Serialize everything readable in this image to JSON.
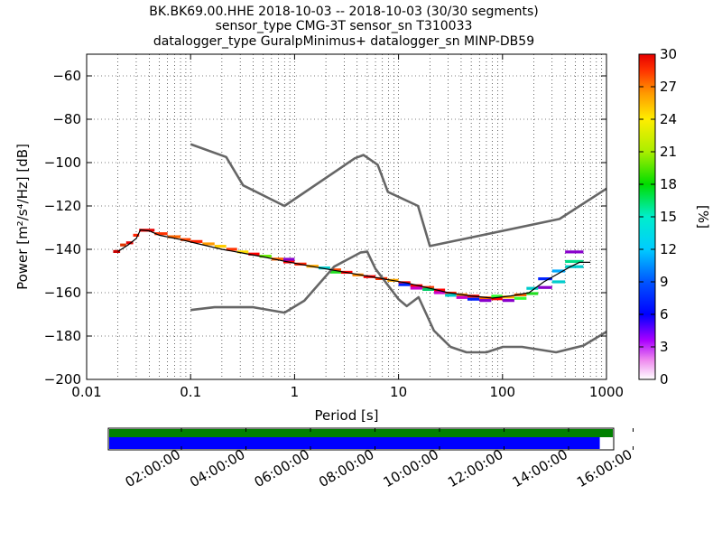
{
  "chart_data": {
    "type": "heatmap",
    "title_lines": [
      "BK.BK69.00.HHE   2018-10-03 -- 2018-10-03  (30/30 segments)",
      "sensor_type CMG-3T sensor_sn T310033",
      "datalogger_type GuralpMinimus+ datalogger_sn MINP-DB59"
    ],
    "xlabel": "Period [s]",
    "ylabel": "Power [m²/s⁴/Hz] [dB]",
    "x_scale": "log",
    "xlim": [
      0.01,
      1000
    ],
    "ylim": [
      -200,
      -50
    ],
    "x_ticks": [
      {
        "v": 0.01,
        "label": "0.01"
      },
      {
        "v": 0.1,
        "label": "0.1"
      },
      {
        "v": 1,
        "label": "1"
      },
      {
        "v": 10,
        "label": "10"
      },
      {
        "v": 100,
        "label": "100"
      },
      {
        "v": 1000,
        "label": "1000"
      }
    ],
    "y_ticks": [
      {
        "v": -60,
        "label": "−60"
      },
      {
        "v": -80,
        "label": "−80"
      },
      {
        "v": -100,
        "label": "−100"
      },
      {
        "v": -120,
        "label": "−120"
      },
      {
        "v": -140,
        "label": "−140"
      },
      {
        "v": -160,
        "label": "−160"
      },
      {
        "v": -180,
        "label": "−180"
      },
      {
        "v": -200,
        "label": "−200"
      }
    ],
    "grid": true,
    "colorbar": {
      "label": "[%]",
      "min": 0,
      "max": 30,
      "ticks": [
        {
          "v": 0,
          "label": "0"
        },
        {
          "v": 3,
          "label": "3"
        },
        {
          "v": 6,
          "label": "6"
        },
        {
          "v": 9,
          "label": "9"
        },
        {
          "v": 12,
          "label": "12"
        },
        {
          "v": 15,
          "label": "15"
        },
        {
          "v": 18,
          "label": "18"
        },
        {
          "v": 21,
          "label": "21"
        },
        {
          "v": 24,
          "label": "24"
        },
        {
          "v": 27,
          "label": "27"
        },
        {
          "v": 30,
          "label": "30"
        }
      ]
    },
    "noise_models": [
      {
        "name": "high",
        "color": "#666666",
        "points": [
          [
            0.1,
            -91.5
          ],
          [
            0.22,
            -97.4
          ],
          [
            0.32,
            -110.5
          ],
          [
            0.8,
            -120
          ],
          [
            3.8,
            -98
          ],
          [
            4.6,
            -96.5
          ],
          [
            6.3,
            -101
          ],
          [
            7.9,
            -113.5
          ],
          [
            15.4,
            -120
          ],
          [
            20,
            -138.5
          ],
          [
            354,
            -126
          ],
          [
            1000,
            -112
          ]
        ]
      },
      {
        "name": "low",
        "color": "#666666",
        "points": [
          [
            0.1,
            -168
          ],
          [
            0.17,
            -166.7
          ],
          [
            0.4,
            -166.7
          ],
          [
            0.8,
            -169.2
          ],
          [
            1.24,
            -163.7
          ],
          [
            2.4,
            -148
          ],
          [
            4.3,
            -141.5
          ],
          [
            5,
            -141.1
          ],
          [
            6,
            -149
          ],
          [
            10,
            -163
          ],
          [
            12,
            -166.2
          ],
          [
            15.6,
            -162.1
          ],
          [
            21.9,
            -177.5
          ],
          [
            31.6,
            -185
          ],
          [
            45,
            -187.5
          ],
          [
            70,
            -187.5
          ],
          [
            101,
            -185
          ],
          [
            154,
            -185
          ],
          [
            328,
            -187.5
          ],
          [
            600,
            -184.4
          ],
          [
            1000,
            -178
          ]
        ]
      }
    ],
    "psd_mode_line": {
      "color": "#000000",
      "points": [
        [
          0.02,
          -141
        ],
        [
          0.025,
          -138
        ],
        [
          0.03,
          -135
        ],
        [
          0.033,
          -131
        ],
        [
          0.04,
          -131.5
        ],
        [
          0.05,
          -133.5
        ],
        [
          0.08,
          -135.5
        ],
        [
          0.12,
          -137.5
        ],
        [
          0.2,
          -140
        ],
        [
          0.3,
          -141.5
        ],
        [
          0.5,
          -143.5
        ],
        [
          0.8,
          -145.5
        ],
        [
          1.5,
          -148
        ],
        [
          3,
          -150.5
        ],
        [
          6,
          -153
        ],
        [
          12,
          -155.5
        ],
        [
          20,
          -158
        ],
        [
          30,
          -160
        ],
        [
          50,
          -161.5
        ],
        [
          80,
          -162.5
        ],
        [
          120,
          -161.5
        ],
        [
          180,
          -160
        ],
        [
          250,
          -155
        ],
        [
          350,
          -151
        ],
        [
          450,
          -148
        ],
        [
          550,
          -146
        ],
        [
          700,
          -146
        ]
      ]
    },
    "psd_band_segments": [
      {
        "x0": 0.018,
        "x1": 0.021,
        "y": -141,
        "color": "#c80000"
      },
      {
        "x0": 0.021,
        "x1": 0.024,
        "y": -138,
        "color": "#dd3300"
      },
      {
        "x0": 0.024,
        "x1": 0.028,
        "y": -137,
        "color": "#e60000"
      },
      {
        "x0": 0.028,
        "x1": 0.032,
        "y": -133.5,
        "color": "#ff2200"
      },
      {
        "x0": 0.032,
        "x1": 0.045,
        "y": -131.2,
        "color": "#e60000"
      },
      {
        "x0": 0.045,
        "x1": 0.06,
        "y": -132.8,
        "color": "#ff3300"
      },
      {
        "x0": 0.06,
        "x1": 0.08,
        "y": -134.2,
        "color": "#ff6600"
      },
      {
        "x0": 0.08,
        "x1": 0.1,
        "y": -135.5,
        "color": "#ff4400"
      },
      {
        "x0": 0.1,
        "x1": 0.13,
        "y": -136.4,
        "color": "#ff2200"
      },
      {
        "x0": 0.13,
        "x1": 0.17,
        "y": -137.5,
        "color": "#ff9900"
      },
      {
        "x0": 0.17,
        "x1": 0.22,
        "y": -138.6,
        "color": "#ffcc00"
      },
      {
        "x0": 0.22,
        "x1": 0.28,
        "y": -140,
        "color": "#ff3300"
      },
      {
        "x0": 0.28,
        "x1": 0.36,
        "y": -141.2,
        "color": "#ffdd00"
      },
      {
        "x0": 0.36,
        "x1": 0.46,
        "y": -142.2,
        "color": "#ff0000"
      },
      {
        "x0": 0.46,
        "x1": 0.6,
        "y": -143.2,
        "color": "#66ee00"
      },
      {
        "x0": 0.6,
        "x1": 0.78,
        "y": -144.5,
        "color": "#ff6600"
      },
      {
        "x0": 0.78,
        "x1": 1.0,
        "y": -145.8,
        "color": "#ff0000"
      },
      {
        "x0": 0.78,
        "x1": 1.0,
        "y": -144.6,
        "color": "#8800cc"
      },
      {
        "x0": 1.0,
        "x1": 1.3,
        "y": -146.8,
        "color": "#ff2200"
      },
      {
        "x0": 1.3,
        "x1": 1.7,
        "y": -147.8,
        "color": "#ffaa00"
      },
      {
        "x0": 1.7,
        "x1": 2.2,
        "y": -148.6,
        "color": "#00cccc"
      },
      {
        "x0": 2.2,
        "x1": 2.8,
        "y": -149.5,
        "color": "#ff4400"
      },
      {
        "x0": 2.2,
        "x1": 2.8,
        "y": -150.5,
        "color": "#22dd22"
      },
      {
        "x0": 2.8,
        "x1": 3.6,
        "y": -150.6,
        "color": "#ff0000"
      },
      {
        "x0": 3.6,
        "x1": 4.6,
        "y": -151.8,
        "color": "#ff8800"
      },
      {
        "x0": 4.6,
        "x1": 6.0,
        "y": -152.6,
        "color": "#ff0000"
      },
      {
        "x0": 6.0,
        "x1": 7.8,
        "y": -153.5,
        "color": "#ff3300"
      },
      {
        "x0": 7.8,
        "x1": 10,
        "y": -154.3,
        "color": "#ffaa00"
      },
      {
        "x0": 10,
        "x1": 13,
        "y": -155.4,
        "color": "#ff0000"
      },
      {
        "x0": 10,
        "x1": 13,
        "y": -156.3,
        "color": "#0022ff"
      },
      {
        "x0": 13,
        "x1": 17,
        "y": -156.8,
        "color": "#ff0000"
      },
      {
        "x0": 13,
        "x1": 17,
        "y": -157.9,
        "color": "#cc00cc"
      },
      {
        "x0": 17,
        "x1": 22,
        "y": -157.6,
        "color": "#ff3300"
      },
      {
        "x0": 17,
        "x1": 22,
        "y": -158.5,
        "color": "#00cc66"
      },
      {
        "x0": 22,
        "x1": 28,
        "y": -158.8,
        "color": "#ff0000"
      },
      {
        "x0": 22,
        "x1": 28,
        "y": -160.0,
        "color": "#cc00cc"
      },
      {
        "x0": 28,
        "x1": 36,
        "y": -160.2,
        "color": "#ff2200"
      },
      {
        "x0": 28,
        "x1": 36,
        "y": -161.2,
        "color": "#00cccc"
      },
      {
        "x0": 36,
        "x1": 46,
        "y": -161.0,
        "color": "#ff8800"
      },
      {
        "x0": 36,
        "x1": 46,
        "y": -162.2,
        "color": "#cc00cc"
      },
      {
        "x0": 46,
        "x1": 60,
        "y": -161.6,
        "color": "#ff0000"
      },
      {
        "x0": 46,
        "x1": 60,
        "y": -163.0,
        "color": "#0022ff"
      },
      {
        "x0": 60,
        "x1": 78,
        "y": -162.4,
        "color": "#ff6600"
      },
      {
        "x0": 60,
        "x1": 78,
        "y": -163.6,
        "color": "#8800cc"
      },
      {
        "x0": 78,
        "x1": 100,
        "y": -162.8,
        "color": "#ff0000"
      },
      {
        "x0": 78,
        "x1": 100,
        "y": -161.6,
        "color": "#33ff33"
      },
      {
        "x0": 100,
        "x1": 130,
        "y": -162.0,
        "color": "#ffaa00"
      },
      {
        "x0": 100,
        "x1": 130,
        "y": -163.6,
        "color": "#8800cc"
      },
      {
        "x0": 130,
        "x1": 170,
        "y": -161.0,
        "color": "#ff6600"
      },
      {
        "x0": 130,
        "x1": 170,
        "y": -162.6,
        "color": "#33ff33"
      },
      {
        "x0": 170,
        "x1": 220,
        "y": -158.0,
        "color": "#00cccc"
      },
      {
        "x0": 170,
        "x1": 220,
        "y": -160.4,
        "color": "#22dd22"
      },
      {
        "x0": 220,
        "x1": 300,
        "y": -153.6,
        "color": "#0022ff"
      },
      {
        "x0": 220,
        "x1": 300,
        "y": -157.6,
        "color": "#8800cc"
      },
      {
        "x0": 300,
        "x1": 400,
        "y": -150.0,
        "color": "#00aaff"
      },
      {
        "x0": 300,
        "x1": 400,
        "y": -155.0,
        "color": "#00cccc"
      },
      {
        "x0": 400,
        "x1": 600,
        "y": -141.2,
        "color": "#8800cc"
      },
      {
        "x0": 400,
        "x1": 600,
        "y": -145.6,
        "color": "#00dd88"
      },
      {
        "x0": 400,
        "x1": 600,
        "y": -148.0,
        "color": "#00cccc"
      }
    ],
    "coverage": {
      "time_ticks": [
        {
          "t": 2,
          "label": "02:00:00"
        },
        {
          "t": 4,
          "label": "04:00:00"
        },
        {
          "t": 6,
          "label": "06:00:00"
        },
        {
          "t": 8,
          "label": "08:00:00"
        },
        {
          "t": 10,
          "label": "10:00:00"
        },
        {
          "t": 12,
          "label": "12:00:00"
        },
        {
          "t": 14,
          "label": "14:00:00"
        },
        {
          "t": 16,
          "label": "16:00:00"
        }
      ],
      "tmin": 0,
      "tmax": 15.9,
      "data_bar": {
        "t0": 0,
        "t1": 15.9,
        "color": "#008000"
      },
      "psd_bar": {
        "t0": 0,
        "t1": 15.6,
        "color": "#0000ff"
      }
    }
  }
}
